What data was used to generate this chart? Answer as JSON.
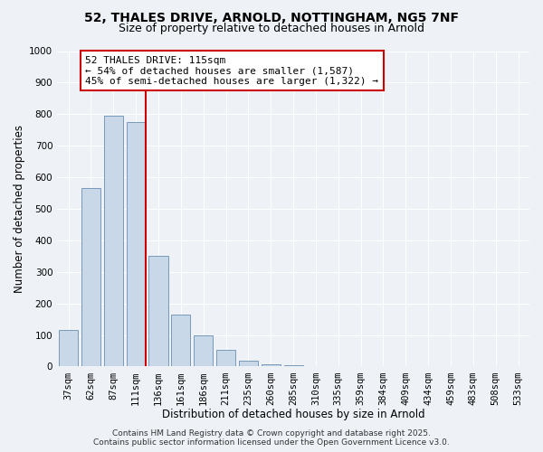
{
  "title_line1": "52, THALES DRIVE, ARNOLD, NOTTINGHAM, NG5 7NF",
  "title_line2": "Size of property relative to detached houses in Arnold",
  "bar_labels": [
    "37sqm",
    "62sqm",
    "87sqm",
    "111sqm",
    "136sqm",
    "161sqm",
    "186sqm",
    "211sqm",
    "235sqm",
    "260sqm",
    "285sqm",
    "310sqm",
    "335sqm",
    "359sqm",
    "384sqm",
    "409sqm",
    "434sqm",
    "459sqm",
    "483sqm",
    "508sqm",
    "533sqm"
  ],
  "bar_values": [
    115,
    565,
    795,
    775,
    350,
    165,
    98,
    52,
    18,
    8,
    5,
    2,
    0,
    0,
    0,
    0,
    0,
    0,
    0,
    0,
    0
  ],
  "bar_color": "#c8d8e8",
  "bar_edgecolor": "#7799bb",
  "vline_index": 3.43,
  "vline_color": "#cc0000",
  "xlabel": "Distribution of detached houses by size in Arnold",
  "ylabel": "Number of detached properties",
  "ylim": [
    0,
    1000
  ],
  "yticks": [
    0,
    100,
    200,
    300,
    400,
    500,
    600,
    700,
    800,
    900,
    1000
  ],
  "annotation_title": "52 THALES DRIVE: 115sqm",
  "annotation_line2": "← 54% of detached houses are smaller (1,587)",
  "annotation_line3": "45% of semi-detached houses are larger (1,322) →",
  "annotation_box_color": "#ffffff",
  "annotation_box_edgecolor": "#cc0000",
  "footer_line1": "Contains HM Land Registry data © Crown copyright and database right 2025.",
  "footer_line2": "Contains public sector information licensed under the Open Government Licence v3.0.",
  "bg_color": "#eef2f7",
  "grid_color": "#ffffff",
  "title_fontsize": 10,
  "subtitle_fontsize": 9,
  "axis_label_fontsize": 8.5,
  "tick_fontsize": 7.5,
  "annotation_fontsize": 8,
  "footer_fontsize": 6.5
}
